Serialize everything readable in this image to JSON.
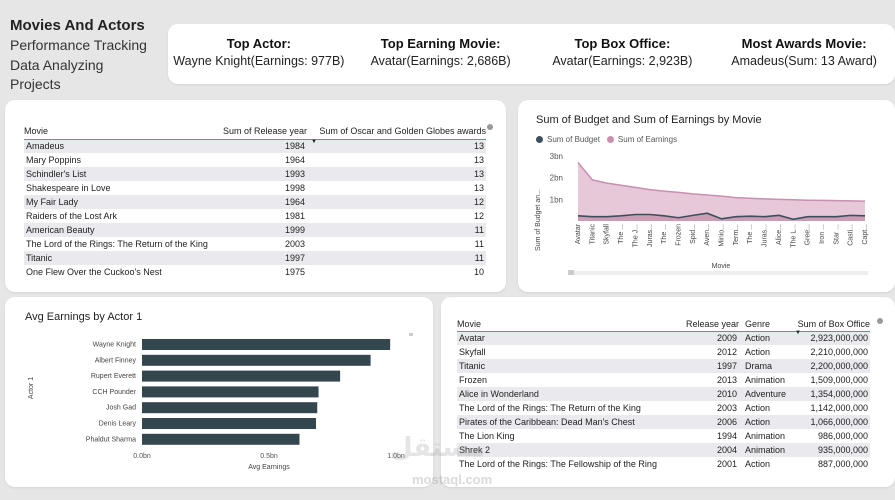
{
  "header": {
    "title": "Movies And Actors",
    "subtitle_lines": [
      "Performance Tracking",
      "Data Analyzing",
      "Projects"
    ]
  },
  "kpis": [
    {
      "title": "Top Actor:",
      "value": "Wayne Knight(Earnings: 977B)"
    },
    {
      "title": "Top Earning Movie:",
      "value": "Avatar(Earnings: 2,686B)"
    },
    {
      "title": "Top Box Office:",
      "value": "Avatar(Earnings: 2,923B)"
    },
    {
      "title": "Most Awards Movie:",
      "value": "Amadeus(Sum: 13 Award)"
    }
  ],
  "awards_table": {
    "columns": [
      "Movie",
      "Sum of Release year",
      "Sum of Oscar and Golden Globes awards"
    ],
    "rows": [
      [
        "Amadeus",
        "1984",
        "13"
      ],
      [
        "Mary Poppins",
        "1964",
        "13"
      ],
      [
        "Schindler's List",
        "1993",
        "13"
      ],
      [
        "Shakespeare in Love",
        "1998",
        "13"
      ],
      [
        "My Fair Lady",
        "1964",
        "12"
      ],
      [
        "Raiders of the Lost Ark",
        "1981",
        "12"
      ],
      [
        "American Beauty",
        "1999",
        "11"
      ],
      [
        "The Lord of the Rings: The Return of the King",
        "2003",
        "11"
      ],
      [
        "Titanic",
        "1997",
        "11"
      ],
      [
        "One Flew Over the Cuckoo's Nest",
        "1975",
        "10"
      ]
    ]
  },
  "box_office_table": {
    "columns": [
      "Movie",
      "Release year",
      "Genre",
      "Sum of Box Office"
    ],
    "rows": [
      [
        "Avatar",
        "2009",
        "Action",
        "2,923,000,000"
      ],
      [
        "Skyfall",
        "2012",
        "Action",
        "2,210,000,000"
      ],
      [
        "Titanic",
        "1997",
        "Drama",
        "2,200,000,000"
      ],
      [
        "Frozen",
        "2013",
        "Animation",
        "1,509,000,000"
      ],
      [
        "Alice in Wonderland",
        "2010",
        "Adventure",
        "1,354,000,000"
      ],
      [
        "The Lord of the Rings: The Return of the King",
        "2003",
        "Action",
        "1,142,000,000"
      ],
      [
        "Pirates of the Caribbean: Dead Man's Chest",
        "2006",
        "Action",
        "1,066,000,000"
      ],
      [
        "The Lion King",
        "1994",
        "Animation",
        "986,000,000"
      ],
      [
        "Shrek 2",
        "2004",
        "Animation",
        "935,000,000"
      ],
      [
        "The Lord of the Rings: The Fellowship of the Ring",
        "2001",
        "Action",
        "887,000,000"
      ]
    ]
  },
  "watermark": {
    "arabic": "مستقل",
    "latin": "mostaql.com"
  },
  "colors": {
    "budget": "#3d4f5c",
    "earnings": "#c98fb0",
    "bar": "#34474f",
    "accent": "#b0708a"
  },
  "chart_data": [
    {
      "type": "area",
      "title": "Sum of Budget and Sum of Earnings by Movie",
      "xlabel": "Movie",
      "ylabel": "Sum of Budget an...",
      "yticks": [
        "1bn",
        "2bn",
        "3bn"
      ],
      "ylim": [
        0,
        3
      ],
      "categories": [
        "Avatar",
        "Titanic",
        "Skyfall",
        "The ...",
        "The J...",
        "Juras...",
        "The ...",
        "Frozen",
        "Spid...",
        "Aven...",
        "Minio...",
        "Term...",
        "The ...",
        "Juras...",
        "Alice...",
        "The L...",
        "Gree...",
        "Iron ...",
        "Star ...",
        "Casti...",
        "Capt..."
      ],
      "series": [
        {
          "name": "Sum of Budget",
          "values": [
            0.24,
            0.2,
            0.2,
            0.24,
            0.3,
            0.3,
            0.24,
            0.15,
            0.26,
            0.36,
            0.1,
            0.2,
            0.22,
            0.2,
            0.26,
            0.08,
            0.2,
            0.2,
            0.2,
            0.26,
            0.24
          ]
        },
        {
          "name": "Sum of Earnings",
          "values": [
            2.7,
            1.9,
            1.75,
            1.65,
            1.55,
            1.45,
            1.38,
            1.32,
            1.25,
            1.2,
            1.15,
            1.08,
            1.05,
            1.02,
            1.0,
            0.98,
            0.96,
            0.95,
            0.94,
            0.93,
            0.92
          ]
        }
      ]
    },
    {
      "type": "bar",
      "orientation": "horizontal",
      "title": "Avg Earnings by Actor 1",
      "xlabel": "Avg Earnings",
      "ylabel": "Actor 1",
      "xticks": [
        "0.0bn",
        "0.5bn",
        "1.0bn"
      ],
      "xlim": [
        0,
        1.0
      ],
      "categories": [
        "Wayne Knight",
        "Albert Finney",
        "Rupert Everett",
        "CCH Pounder",
        "Josh Gad",
        "Denis Leary",
        "Phaldut Sharma"
      ],
      "values": [
        0.977,
        0.9,
        0.78,
        0.695,
        0.69,
        0.685,
        0.62
      ]
    }
  ]
}
